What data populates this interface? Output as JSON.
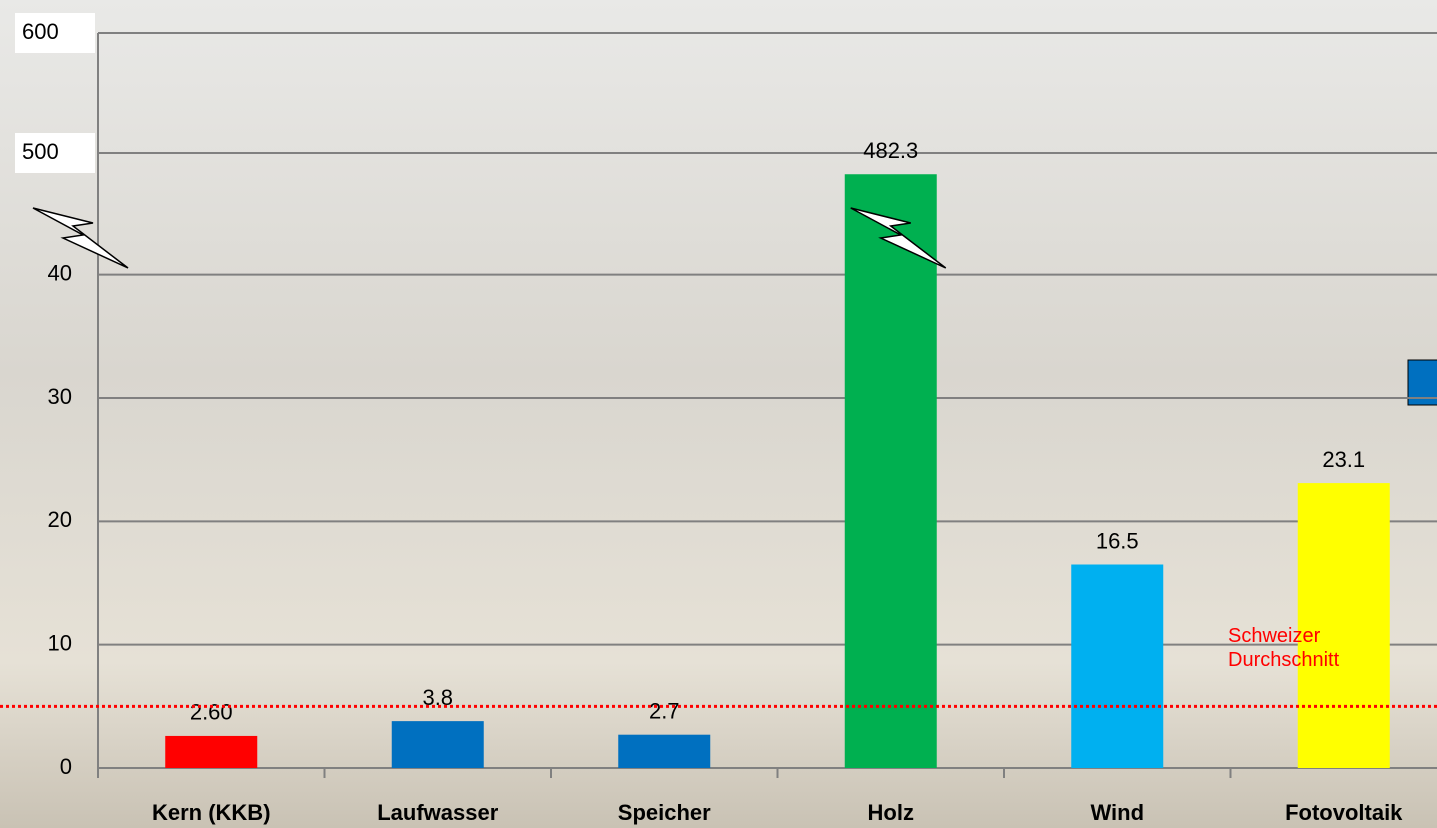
{
  "chart_data": {
    "type": "bar",
    "categories": [
      "Kern (KKB)",
      "Laufwasser",
      "Speicher",
      "Holz",
      "Wind",
      "Fotovoltaik"
    ],
    "values": [
      2.6,
      3.8,
      2.7,
      482.3,
      16.5,
      23.1
    ],
    "value_labels": [
      "2.60",
      "3.8",
      "2.7",
      "482.3",
      "16.5",
      "23.1"
    ],
    "colors": [
      "#ff0000",
      "#0070c0",
      "#0070c0",
      "#00b050",
      "#00b0f0",
      "#ffff00"
    ],
    "ylim": [
      0,
      600
    ],
    "y_break": [
      45,
      450
    ],
    "yticks": [
      0,
      10,
      20,
      30,
      40,
      500,
      600
    ],
    "grid": true,
    "reference_line": {
      "value": 5,
      "label": "Schweizer Durchschnitt",
      "color": "#ff0000"
    }
  }
}
